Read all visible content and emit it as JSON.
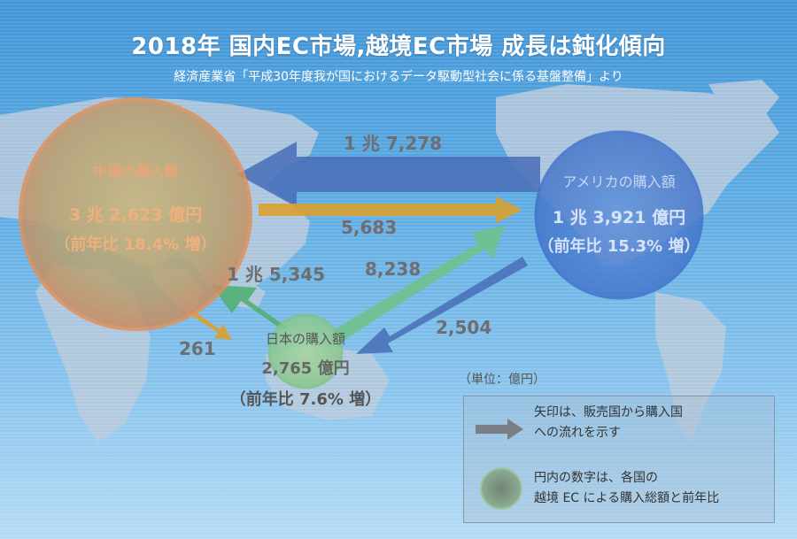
{
  "title": "2018年 国内EC市場,越境EC市場 成長は鈍化傾向",
  "subtitle": "経済産業省「平成30年度我が国におけるデータ駆動型社会に係る基盤整備」より",
  "nodes": {
    "china": {
      "name": "中国の購入額",
      "amount": "3 兆 2,623 億円",
      "growth": "（前年比 18.4% 増）"
    },
    "usa": {
      "name": "アメリカの購入額",
      "amount": "1 兆 3,921 億円",
      "growth": "（前年比 15.3% 増）"
    },
    "japan": {
      "name": "日本の購入額",
      "amount": "2,765 億円",
      "growth": "（前年比 7.6% 増）"
    }
  },
  "flows": {
    "usa_to_china": "1 兆 7,278",
    "china_to_usa": "5,683",
    "japan_to_china": "1 兆 5,345",
    "japan_to_usa": "8,238",
    "usa_to_japan": "2,504",
    "china_to_japan": "261"
  },
  "unit": "（単位：億円）",
  "legend": {
    "arrow_line1": "矢印は、販売国から購入国",
    "arrow_line2": "への流れを示す",
    "circle_line1": "円内の数字は、各国の",
    "circle_line2": "越境 EC による購入総額と前年比"
  },
  "colors": {
    "china": "#e0915a",
    "usa": "#3f6fc7",
    "japan": "#7fc48a",
    "usa_arrow": "#4a6fb8",
    "china_arrow": "#d9a030",
    "japan_arrow": "#4fae6f"
  }
}
